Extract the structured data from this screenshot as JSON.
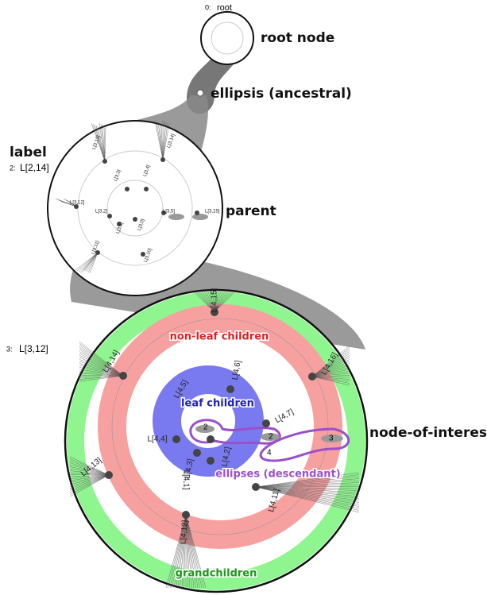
{
  "root": {
    "index": "0:",
    "label": "root"
  },
  "annotations": {
    "root_node": "root node",
    "ellipsis_ancestral": "ellipsis (ancestral)",
    "label_heading": "label",
    "parent": "parent",
    "non_leaf_children": "non-leaf children",
    "leaf_children": "leaf children",
    "ellipses_descendant": "ellipses (descendant)",
    "node_of_interest": "node-of-interest",
    "grandchildren": "grandchildren"
  },
  "parent_label": {
    "index": "2:",
    "label": "L[2,14]"
  },
  "noi_label": {
    "index": "3:",
    "label": "L[3,12]"
  },
  "parent_children": [
    "L[3,13]",
    "L[3,14]",
    "L[3,3]",
    "L[3,4]",
    "L[3,12]",
    "L[3,2]",
    "L[3,5]",
    "L[3,15]",
    "L[3,1]",
    "L[3,0]",
    "L[3,11]",
    "L[3,10]"
  ],
  "noi_children": [
    "L[4,15]",
    "L[4,14]",
    "L[4,16]",
    "L[4,6]",
    "L[4,5]",
    "L[4,7]",
    "L[4,4]",
    "L[4,2]",
    "L[4,3]",
    "L[4,1]",
    "L[4,13]",
    "L[4,11]",
    "L[4,12]"
  ],
  "ellipsis_counts": [
    2,
    2,
    3,
    4
  ]
}
